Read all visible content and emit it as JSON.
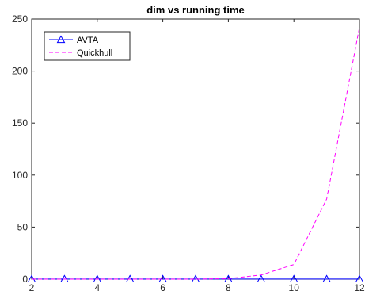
{
  "chart_data": {
    "type": "line",
    "title": "dim vs running time",
    "xlabel": "",
    "ylabel": "",
    "xlim": [
      2,
      12
    ],
    "ylim": [
      0,
      250
    ],
    "xticks": [
      2,
      4,
      6,
      8,
      10,
      12
    ],
    "yticks": [
      0,
      50,
      100,
      150,
      200,
      250
    ],
    "grid": false,
    "legend_position": "top-left",
    "x": [
      2,
      3,
      4,
      5,
      6,
      7,
      8,
      9,
      10,
      11,
      12
    ],
    "series": [
      {
        "name": "AVTA",
        "values": [
          0.1,
          0.1,
          0.1,
          0.1,
          0.1,
          0.1,
          0.1,
          0.1,
          0.1,
          0.1,
          0.1
        ],
        "color": "#0000ff",
        "line_style": "solid",
        "marker": "triangle"
      },
      {
        "name": "Quickhull",
        "values": [
          0,
          0,
          0,
          0,
          0,
          0,
          0.5,
          4,
          14,
          77,
          242
        ],
        "color": "#ff00ff",
        "line_style": "dashed",
        "marker": "none"
      }
    ]
  }
}
